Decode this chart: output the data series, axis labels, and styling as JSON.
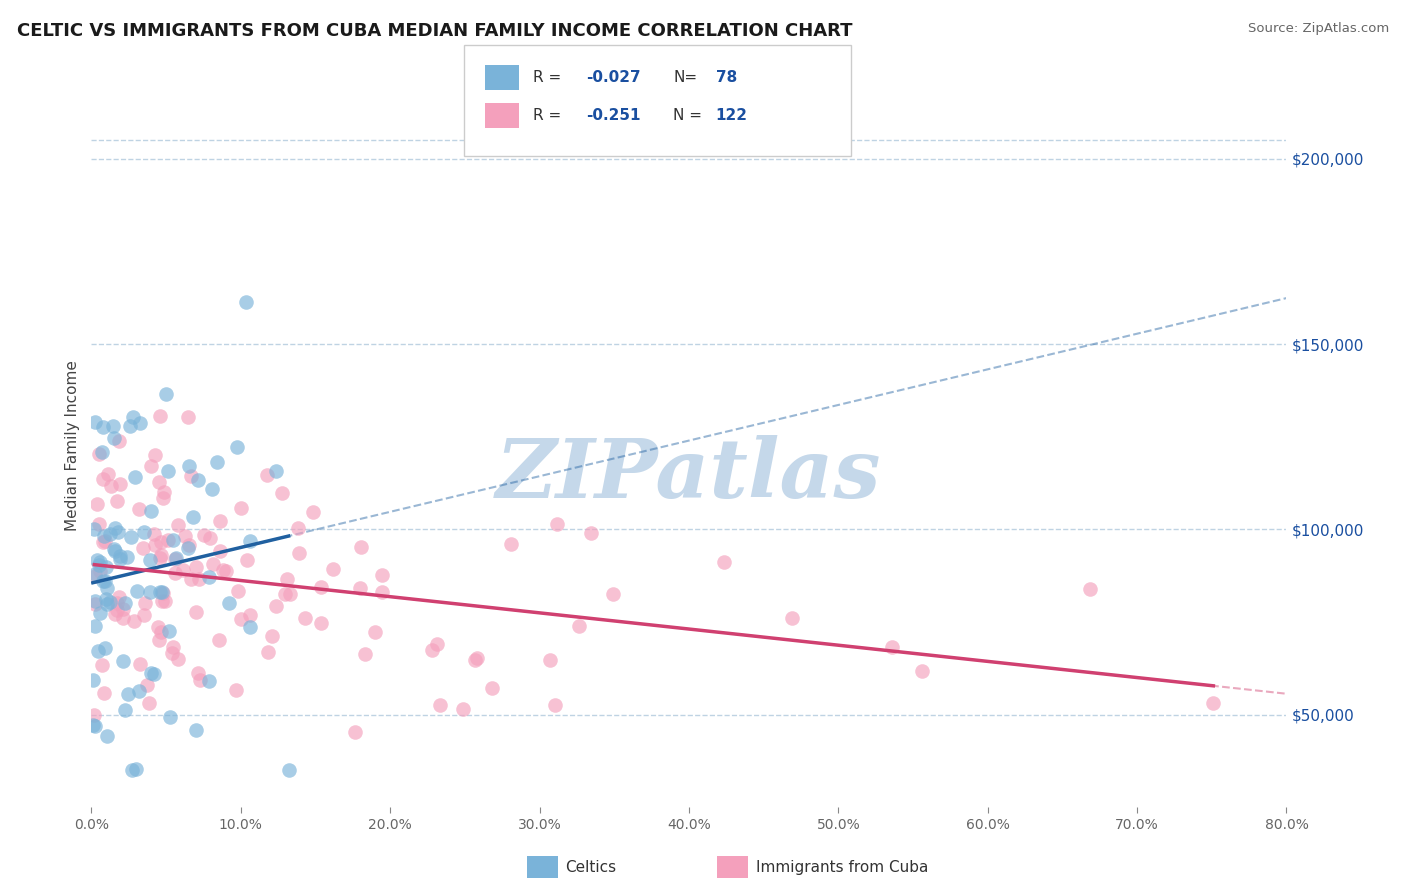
{
  "title": "CELTIC VS IMMIGRANTS FROM CUBA MEDIAN FAMILY INCOME CORRELATION CHART",
  "source": "Source: ZipAtlas.com",
  "ylabel": "Median Family Income",
  "right_yticks": [
    50000,
    100000,
    150000,
    200000
  ],
  "right_yticklabels": [
    "$50,000",
    "$100,000",
    "$150,000",
    "$200,000"
  ],
  "blue_color": "#7ab3d9",
  "pink_color": "#f4a0bc",
  "blue_line_color": "#2060a0",
  "pink_line_color": "#d04070",
  "r_n_color": "#1a4fa0",
  "label_color": "#333333",
  "grid_color": "#b8cfe0",
  "watermark_color": "#c5d8ea",
  "background_color": "#ffffff",
  "xlim": [
    0,
    80
  ],
  "ylim": [
    25000,
    220000
  ],
  "xtick_vals": [
    0,
    10,
    20,
    30,
    40,
    50,
    60,
    70,
    80
  ],
  "scatter_alpha": 0.65,
  "scatter_size": 110,
  "n_celtic": 78,
  "n_cuba": 122,
  "R_celtic": -0.027,
  "R_cuba": -0.251
}
